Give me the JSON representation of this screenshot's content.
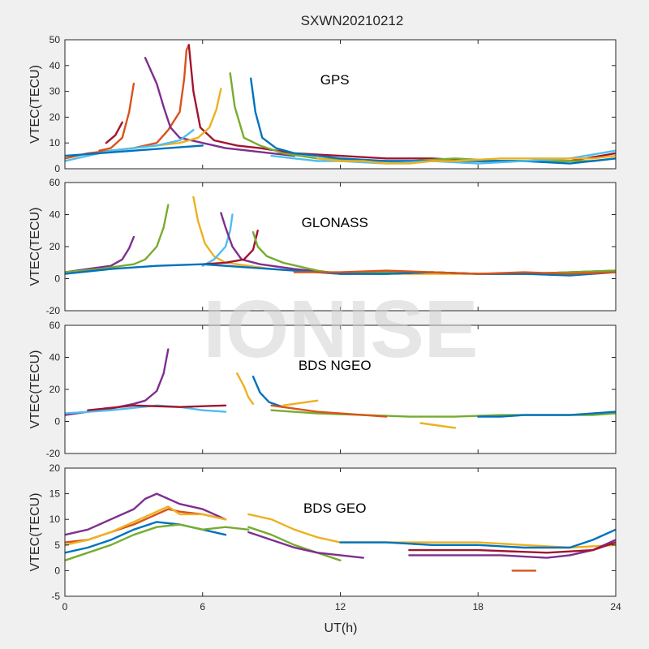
{
  "chart_data": {
    "type": "line",
    "title": "SXWN20210212",
    "xlabel": "UT(h)",
    "xlim": [
      0,
      24
    ],
    "xticks": [
      "0",
      "6",
      "12",
      "18",
      "24"
    ],
    "watermark": "IONISE",
    "colors": [
      "#0072BD",
      "#D95319",
      "#EDB120",
      "#7E2F8E",
      "#77AC30",
      "#4DBEEE",
      "#A2142F"
    ],
    "panels": [
      {
        "name": "GPS",
        "ylabel": "VTEC(TECU)",
        "ylim": [
          0,
          50
        ],
        "yticks": [
          "0",
          "10",
          "20",
          "30",
          "40",
          "50"
        ],
        "series": [
          {
            "color": "#D95319",
            "x": [
              0,
              1,
              2,
              3,
              4,
              4.5,
              5,
              5.2,
              5.3,
              5.4
            ],
            "y": [
              4,
              6,
              7,
              8,
              10,
              15,
              22,
              35,
              46,
              48
            ]
          },
          {
            "color": "#7E2F8E",
            "x": [
              3.5,
              4,
              4.3,
              4.6,
              5,
              6,
              7,
              8,
              9,
              10
            ],
            "y": [
              43,
              33,
              24,
              16,
              12,
              10,
              8,
              7,
              6,
              5
            ]
          },
          {
            "color": "#A2142F",
            "x": [
              5.4,
              5.6,
              5.9,
              6.5,
              7.5,
              8.5,
              10,
              12,
              14,
              16,
              18,
              20,
              22,
              24
            ],
            "y": [
              48,
              30,
              16,
              11,
              9,
              8,
              6,
              5,
              4,
              4,
              3,
              3,
              3,
              6
            ]
          },
          {
            "color": "#EDB120",
            "x": [
              4,
              5,
              5.8,
              6.3,
              6.6,
              6.8
            ],
            "y": [
              9,
              10,
              12,
              16,
              23,
              31
            ]
          },
          {
            "color": "#77AC30",
            "x": [
              7.2,
              7.4,
              7.8,
              8.5,
              9.5,
              11,
              13,
              15,
              17,
              19,
              21,
              23,
              24
            ],
            "y": [
              37,
              24,
              12,
              9,
              6,
              4,
              3,
              3,
              4,
              3,
              3,
              3,
              4
            ]
          },
          {
            "color": "#0072BD",
            "x": [
              8.1,
              8.3,
              8.6,
              9.2,
              10,
              11,
              12,
              14,
              16,
              18,
              20,
              22,
              24
            ],
            "y": [
              35,
              22,
              12,
              8,
              6,
              5,
              4,
              3,
              3,
              3,
              3,
              2,
              4
            ]
          },
          {
            "color": "#D95319",
            "x": [
              1.5,
              2,
              2.5,
              2.8,
              3
            ],
            "y": [
              7,
              8,
              12,
              22,
              33
            ]
          },
          {
            "color": "#A2142F",
            "x": [
              1.8,
              2.2,
              2.5
            ],
            "y": [
              10,
              13,
              18
            ]
          },
          {
            "color": "#4DBEEE",
            "x": [
              0,
              1,
              2,
              3,
              4,
              5,
              5.6
            ],
            "y": [
              3,
              5,
              7,
              8,
              9,
              11,
              15
            ]
          },
          {
            "color": "#0072BD",
            "x": [
              0,
              1.5,
              3,
              4.5,
              6
            ],
            "y": [
              5,
              6,
              7,
              8,
              9
            ]
          },
          {
            "color": "#4DBEEE",
            "x": [
              9,
              10,
              11,
              12,
              14,
              16,
              18,
              20,
              22,
              24
            ],
            "y": [
              5,
              4,
              3,
              3,
              2,
              3,
              2,
              3,
              4,
              7
            ]
          },
          {
            "color": "#EDB120",
            "x": [
              11,
              12,
              13,
              14,
              15,
              16,
              17,
              19,
              21,
              23,
              24
            ],
            "y": [
              4,
              3,
              3,
              2,
              2,
              3,
              3,
              4,
              4,
              4,
              5
            ]
          }
        ]
      },
      {
        "name": "GLONASS",
        "ylabel": "VTEC(TECU)",
        "ylim": [
          -20,
          60
        ],
        "yticks": [
          "-20",
          "0",
          "20",
          "40",
          "60"
        ],
        "series": [
          {
            "color": "#7E2F8E",
            "x": [
              0,
              1,
              2,
              2.5,
              2.8,
              3
            ],
            "y": [
              4,
              6,
              8,
              12,
              19,
              26
            ]
          },
          {
            "color": "#77AC30",
            "x": [
              0,
              1.5,
              3,
              3.5,
              4,
              4.3,
              4.5
            ],
            "y": [
              4,
              6,
              9,
              12,
              20,
              32,
              46
            ]
          },
          {
            "color": "#EDB120",
            "x": [
              5.6,
              5.8,
              6.1,
              6.5,
              7,
              8,
              9,
              10,
              11,
              12,
              14,
              16,
              18,
              20,
              22,
              24
            ],
            "y": [
              51,
              36,
              22,
              14,
              10,
              8,
              6,
              5,
              4,
              3,
              3,
              3,
              3,
              3,
              3,
              5
            ]
          },
          {
            "color": "#4DBEEE",
            "x": [
              6,
              6.5,
              7,
              7.2,
              7.3
            ],
            "y": [
              8,
              12,
              20,
              30,
              40
            ]
          },
          {
            "color": "#7E2F8E",
            "x": [
              6.8,
              7,
              7.3,
              7.7,
              8.5,
              10,
              12,
              14,
              16,
              18,
              20,
              22,
              24
            ],
            "y": [
              41,
              32,
              20,
              12,
              9,
              6,
              3,
              3,
              4,
              3,
              3,
              4,
              5
            ]
          },
          {
            "color": "#A2142F",
            "x": [
              6,
              7,
              7.8,
              8.2,
              8.4
            ],
            "y": [
              9,
              10,
              12,
              18,
              30
            ]
          },
          {
            "color": "#77AC30",
            "x": [
              8.2,
              8.4,
              8.8,
              9.5,
              11,
              12,
              14,
              16,
              18,
              20,
              22,
              24
            ],
            "y": [
              29,
              20,
              14,
              10,
              5,
              3,
              4,
              4,
              3,
              3,
              4,
              5
            ]
          },
          {
            "color": "#0072BD",
            "x": [
              0,
              2,
              4,
              6,
              8,
              10,
              12,
              14,
              16,
              18,
              20,
              22,
              24
            ],
            "y": [
              3,
              6,
              8,
              9,
              7,
              5,
              3,
              3,
              4,
              3,
              3,
              2,
              4
            ]
          },
          {
            "color": "#D95319",
            "x": [
              10,
              12,
              14,
              16,
              18,
              20,
              22,
              24
            ],
            "y": [
              4,
              4,
              5,
              4,
              3,
              4,
              3,
              4
            ]
          }
        ]
      },
      {
        "name": "BDS NGEO",
        "ylabel": "VTEC(TECU)",
        "ylim": [
          -20,
          60
        ],
        "yticks": [
          "-20",
          "0",
          "20",
          "40",
          "60"
        ],
        "series": [
          {
            "color": "#7E2F8E",
            "x": [
              0,
              1,
              2,
              3,
              3.5,
              4,
              4.3,
              4.5
            ],
            "y": [
              4,
              6,
              8,
              11,
              13,
              19,
              30,
              45
            ]
          },
          {
            "color": "#EDB120",
            "x": [
              7.5,
              7.8,
              8,
              8.2
            ],
            "y": [
              30,
              22,
              15,
              11
            ]
          },
          {
            "color": "#0072BD",
            "x": [
              8.2,
              8.5,
              8.9,
              9.5
            ],
            "y": [
              28,
              18,
              12,
              9
            ]
          },
          {
            "color": "#4DBEEE",
            "x": [
              0,
              2,
              4,
              5,
              6,
              7
            ],
            "y": [
              5,
              7,
              10,
              9,
              7,
              6
            ]
          },
          {
            "color": "#A2142F",
            "x": [
              1,
              3,
              5,
              7
            ],
            "y": [
              7,
              10,
              9,
              10
            ]
          },
          {
            "color": "#77AC30",
            "x": [
              9,
              11,
              13,
              15,
              17,
              19,
              21,
              23,
              24
            ],
            "y": [
              7,
              5,
              4,
              3,
              3,
              4,
              4,
              4,
              5
            ]
          },
          {
            "color": "#D95319",
            "x": [
              9,
              10,
              11,
              12,
              13,
              14
            ],
            "y": [
              10,
              8,
              6,
              5,
              4,
              3
            ]
          },
          {
            "color": "#0072BD",
            "x": [
              18,
              19,
              20,
              21,
              22,
              23,
              24
            ],
            "y": [
              3,
              3,
              4,
              4,
              4,
              5,
              6
            ]
          },
          {
            "color": "#EDB120",
            "x": [
              15.5,
              16,
              17
            ],
            "y": [
              -1,
              -2,
              -4
            ]
          },
          {
            "color": "#EDB120",
            "x": [
              9.5,
              10,
              10.5,
              11
            ],
            "y": [
              10,
              11,
              12,
              13
            ]
          }
        ]
      },
      {
        "name": "BDS GEO",
        "ylabel": "VTEC(TECU)",
        "ylim": [
          -5,
          20
        ],
        "yticks": [
          "-5",
          "0",
          "5",
          "10",
          "15",
          "20"
        ],
        "series": [
          {
            "color": "#7E2F8E",
            "x": [
              0,
              1,
              2,
              3,
              3.5,
              4,
              4.5,
              5,
              6,
              7
            ],
            "y": [
              7,
              8,
              10,
              12,
              14,
              15,
              14,
              13,
              12,
              10
            ]
          },
          {
            "color": "#D95319",
            "x": [
              0,
              1,
              2,
              3,
              4,
              4.5,
              5,
              6,
              7
            ],
            "y": [
              5.5,
              6,
              7.5,
              9,
              11,
              12,
              11.5,
              11,
              10
            ]
          },
          {
            "color": "#EDB120",
            "x": [
              0,
              1,
              2,
              3,
              4,
              4.5,
              5,
              6,
              7
            ],
            "y": [
              5,
              6,
              7.5,
              9.5,
              11.5,
              12.5,
              11,
              11,
              10
            ]
          },
          {
            "color": "#0072BD",
            "x": [
              0,
              1,
              2,
              3,
              4,
              5,
              6,
              7
            ],
            "y": [
              3.5,
              4.5,
              6,
              8,
              9.5,
              9,
              8,
              7
            ]
          },
          {
            "color": "#77AC30",
            "x": [
              0,
              1,
              2,
              3,
              4,
              5,
              6,
              7,
              8
            ],
            "y": [
              2,
              3.5,
              5,
              7,
              8.5,
              9,
              8,
              8.5,
              8
            ]
          },
          {
            "color": "#EDB120",
            "x": [
              8,
              9,
              10,
              11,
              12,
              14,
              16,
              18,
              20,
              22,
              24
            ],
            "y": [
              11,
              10,
              8,
              6.5,
              5.5,
              5.5,
              5.5,
              5.5,
              5,
              4.5,
              5
            ]
          },
          {
            "color": "#77AC30",
            "x": [
              8,
              9,
              10,
              11,
              12
            ],
            "y": [
              8.5,
              7,
              5,
              3.5,
              2
            ]
          },
          {
            "color": "#7E2F8E",
            "x": [
              8,
              9,
              10,
              11,
              12,
              13
            ],
            "y": [
              7.5,
              6,
              4.5,
              3.5,
              3,
              2.5
            ]
          },
          {
            "color": "#0072BD",
            "x": [
              12,
              14,
              16,
              18,
              20,
              22,
              23,
              24
            ],
            "y": [
              5.5,
              5.5,
              5,
              5,
              4.5,
              4.5,
              6,
              8
            ]
          },
          {
            "color": "#7E2F8E",
            "x": [
              15,
              17,
              19,
              21,
              22,
              23,
              24
            ],
            "y": [
              3,
              3,
              3,
              2.5,
              3,
              4,
              6
            ]
          },
          {
            "color": "#D95319",
            "x": [
              19.5,
              20.5
            ],
            "y": [
              0,
              0
            ]
          },
          {
            "color": "#A2142F",
            "x": [
              15,
              18,
              21,
              23,
              24
            ],
            "y": [
              4,
              4,
              3.5,
              4,
              5.5
            ]
          }
        ]
      }
    ]
  }
}
